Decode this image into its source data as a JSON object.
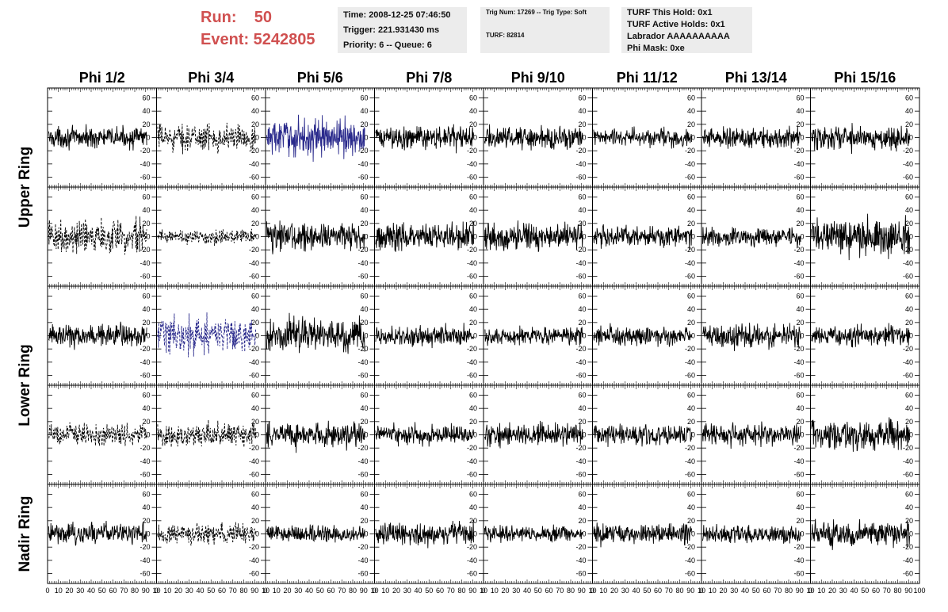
{
  "header": {
    "run_label": "Run:    50",
    "event_label": "Event: 5242805"
  },
  "info": {
    "time": "Time: 2008-12-25 07:46:50",
    "trigger": "Trigger: 221.931430 ms",
    "priority": "Priority: 6 -- Queue: 6",
    "trig_num": "Trig Num: 17269 -- Trig Type: Soft",
    "turf": "TURF: 82814",
    "turf_hold": "TURF This Hold: 0x1",
    "turf_active": "TURF Active Holds: 0x1",
    "labrador": "Labrador AAAAAAAAAA",
    "phi_mask": "Phi Mask: 0xe"
  },
  "colors": {
    "normal": "#000000",
    "highlight": "#2a2a8c",
    "header_red": "#d05050",
    "box_bg": "#ececec"
  },
  "chart_data": {
    "type": "line",
    "columns": [
      "Phi 1/2",
      "Phi 3/4",
      "Phi 5/6",
      "Phi 7/8",
      "Phi 9/10",
      "Phi 11/12",
      "Phi 13/14",
      "Phi 15/16"
    ],
    "rows": [
      {
        "label": "Upper Ring",
        "span": 2
      },
      {
        "label": "Lower Ring",
        "span": 2
      },
      {
        "label": "Nadir Ring",
        "span": 1
      }
    ],
    "ylim": [
      -75,
      75
    ],
    "yticks": [
      "-60",
      "-40",
      "-20",
      "0",
      "20",
      "40",
      "60"
    ],
    "xlim": [
      0,
      100
    ],
    "xticks": [
      "0",
      "10",
      "20",
      "30",
      "40",
      "50",
      "60",
      "70",
      "80",
      "90",
      "100"
    ],
    "xtick_labels_bottom": [
      "0 10 20 30 40 50 60 70 80 90 10",
      "0 10 20 30 40 50 60 70 80 90 10",
      "0 10 20 30 40 50 60 70 80 90 10",
      "0 10 20 30 40 50 60 70 80 90 10",
      "0 10 20 30 40 50 60 70 80 90 10",
      "0 10 20 30 40 50 60 70 80 90 10",
      "0 10 20 30 40 50 60 70 80 90 10",
      "0 10 20 30 40 50 60 70 80 90 100"
    ],
    "grid": false,
    "panels": [
      {
        "row": 0,
        "col": 0,
        "style": "solid",
        "color": "#000000",
        "amplitude": 22
      },
      {
        "row": 0,
        "col": 1,
        "style": "dashed",
        "color": "#000000",
        "amplitude": 28
      },
      {
        "row": 0,
        "col": 2,
        "style": "solid",
        "color": "#2a2a8c",
        "amplitude": 40
      },
      {
        "row": 0,
        "col": 3,
        "style": "solid",
        "color": "#000000",
        "amplitude": 25
      },
      {
        "row": 0,
        "col": 4,
        "style": "solid",
        "color": "#000000",
        "amplitude": 24
      },
      {
        "row": 0,
        "col": 5,
        "style": "solid",
        "color": "#000000",
        "amplitude": 20
      },
      {
        "row": 0,
        "col": 6,
        "style": "solid",
        "color": "#000000",
        "amplitude": 22
      },
      {
        "row": 0,
        "col": 7,
        "style": "solid",
        "color": "#000000",
        "amplitude": 28
      },
      {
        "row": 1,
        "col": 0,
        "style": "dashed",
        "color": "#000000",
        "amplitude": 35
      },
      {
        "row": 1,
        "col": 1,
        "style": "dashed",
        "color": "#000000",
        "amplitude": 16
      },
      {
        "row": 1,
        "col": 2,
        "style": "solid",
        "color": "#000000",
        "amplitude": 30
      },
      {
        "row": 1,
        "col": 3,
        "style": "solid",
        "color": "#000000",
        "amplitude": 30
      },
      {
        "row": 1,
        "col": 4,
        "style": "solid",
        "color": "#000000",
        "amplitude": 28
      },
      {
        "row": 1,
        "col": 5,
        "style": "solid",
        "color": "#000000",
        "amplitude": 22
      },
      {
        "row": 1,
        "col": 6,
        "style": "solid",
        "color": "#000000",
        "amplitude": 20
      },
      {
        "row": 1,
        "col": 7,
        "style": "solid",
        "color": "#000000",
        "amplitude": 40
      },
      {
        "row": 2,
        "col": 0,
        "style": "solid",
        "color": "#000000",
        "amplitude": 25
      },
      {
        "row": 2,
        "col": 1,
        "style": "dashed",
        "color": "#2a2a8c",
        "amplitude": 38
      },
      {
        "row": 2,
        "col": 2,
        "style": "solid",
        "color": "#000000",
        "amplitude": 38
      },
      {
        "row": 2,
        "col": 3,
        "style": "solid",
        "color": "#000000",
        "amplitude": 24
      },
      {
        "row": 2,
        "col": 4,
        "style": "solid",
        "color": "#000000",
        "amplitude": 20
      },
      {
        "row": 2,
        "col": 5,
        "style": "solid",
        "color": "#000000",
        "amplitude": 20
      },
      {
        "row": 2,
        "col": 6,
        "style": "solid",
        "color": "#000000",
        "amplitude": 25
      },
      {
        "row": 2,
        "col": 7,
        "style": "solid",
        "color": "#000000",
        "amplitude": 22
      },
      {
        "row": 3,
        "col": 0,
        "style": "dashed",
        "color": "#000000",
        "amplitude": 25
      },
      {
        "row": 3,
        "col": 1,
        "style": "dashed",
        "color": "#000000",
        "amplitude": 25
      },
      {
        "row": 3,
        "col": 2,
        "style": "solid",
        "color": "#000000",
        "amplitude": 28
      },
      {
        "row": 3,
        "col": 3,
        "style": "solid",
        "color": "#000000",
        "amplitude": 22
      },
      {
        "row": 3,
        "col": 4,
        "style": "solid",
        "color": "#000000",
        "amplitude": 24
      },
      {
        "row": 3,
        "col": 5,
        "style": "solid",
        "color": "#000000",
        "amplitude": 22
      },
      {
        "row": 3,
        "col": 6,
        "style": "solid",
        "color": "#000000",
        "amplitude": 22
      },
      {
        "row": 3,
        "col": 7,
        "style": "solid",
        "color": "#000000",
        "amplitude": 30
      },
      {
        "row": 4,
        "col": 0,
        "style": "solid",
        "color": "#000000",
        "amplitude": 24
      },
      {
        "row": 4,
        "col": 1,
        "style": "dashed",
        "color": "#000000",
        "amplitude": 22
      },
      {
        "row": 4,
        "col": 2,
        "style": "solid",
        "color": "#000000",
        "amplitude": 18
      },
      {
        "row": 4,
        "col": 3,
        "style": "solid",
        "color": "#000000",
        "amplitude": 25
      },
      {
        "row": 4,
        "col": 4,
        "style": "solid",
        "color": "#000000",
        "amplitude": 18
      },
      {
        "row": 4,
        "col": 5,
        "style": "solid",
        "color": "#000000",
        "amplitude": 24
      },
      {
        "row": 4,
        "col": 6,
        "style": "solid",
        "color": "#000000",
        "amplitude": 20
      },
      {
        "row": 4,
        "col": 7,
        "style": "solid",
        "color": "#000000",
        "amplitude": 28
      }
    ]
  }
}
